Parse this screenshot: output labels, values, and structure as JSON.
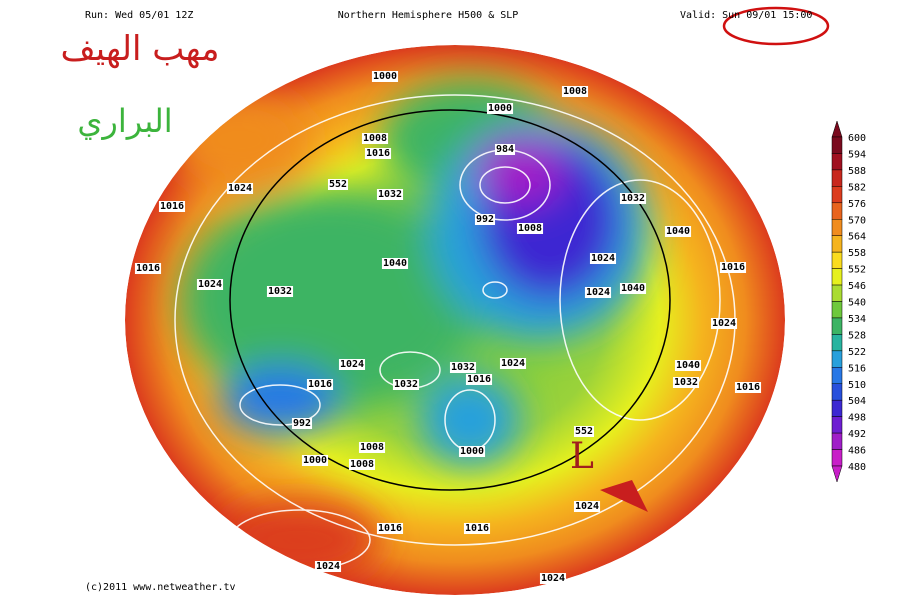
{
  "header": {
    "run": "Run: Wed 05/01 12Z",
    "title": "Northern Hemisphere H500 & SLP",
    "valid": "Valid: Sun 09/01 15:00"
  },
  "watermark": {
    "line1": "مهب الهيف",
    "line2": "البراري"
  },
  "colorbar": {
    "levels": [
      600,
      594,
      588,
      582,
      576,
      570,
      564,
      558,
      552,
      546,
      540,
      534,
      528,
      522,
      516,
      510,
      504,
      498,
      492,
      486,
      480
    ]
  },
  "isobar_labels": [
    "1000",
    "1008",
    "1000",
    "1008",
    "1016",
    "984",
    "1024",
    "552",
    "1032",
    "1016",
    "992",
    "1008",
    "1032",
    "1040",
    "1016",
    "1024",
    "1040",
    "1024",
    "1016",
    "1032",
    "1024",
    "1040",
    "1024",
    "1024",
    "1032",
    "1024",
    "1016",
    "1032",
    "1016",
    "1040",
    "1032",
    "1016",
    "992",
    "552",
    "1000",
    "1008",
    "1000",
    "1008",
    "1024",
    "1016",
    "1016",
    "1024",
    "1024"
  ],
  "annotations": {
    "low": "L"
  },
  "footer": "(c)2011 www.netweather.tv"
}
